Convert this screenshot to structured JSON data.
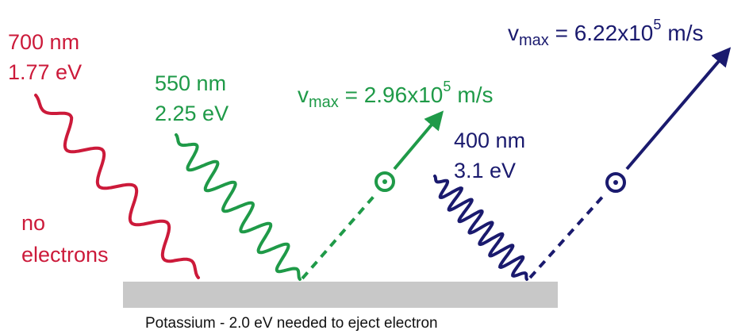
{
  "colors": {
    "red": "#cc1a3a",
    "green": "#1f9a48",
    "navy": "#1a1a6e",
    "plate": "#c8c8c8"
  },
  "photons": [
    {
      "wavelength": "700 nm",
      "energy": "1.77 eV",
      "result": [
        "no",
        "electrons"
      ],
      "color": "red"
    },
    {
      "wavelength": "550 nm",
      "energy": "2.25 eV",
      "vmax": {
        "v": "v",
        "sub": "max",
        "eq": " = 2.96x10",
        "exp": "5",
        "unit": "m/s"
      },
      "color": "green"
    },
    {
      "wavelength": "400 nm",
      "energy": "3.1 eV",
      "vmax": {
        "v": "v",
        "sub": "max",
        "eq": " = 6.22x10",
        "exp": "5",
        "unit": "m/s"
      },
      "color": "navy"
    }
  ],
  "caption": "Potassium - 2.0 eV needed to eject electron"
}
